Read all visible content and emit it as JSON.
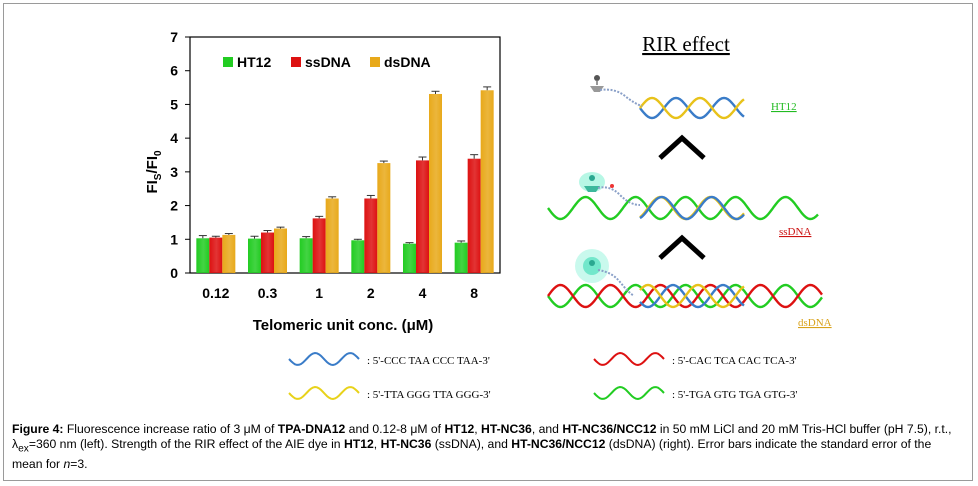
{
  "chart_data": {
    "type": "bar",
    "categories": [
      "0.12",
      "0.3",
      "1",
      "2",
      "4",
      "8"
    ],
    "series": [
      {
        "name": "HT12",
        "color": "#22cc22",
        "values": [
          1.03,
          1.02,
          1.03,
          0.97,
          0.87,
          0.9
        ],
        "errors": [
          0.08,
          0.07,
          0.05,
          0.03,
          0.03,
          0.05
        ]
      },
      {
        "name": "ssDNA",
        "color": "#dd1111",
        "values": [
          1.05,
          1.2,
          1.62,
          2.21,
          3.34,
          3.39
        ],
        "errors": [
          0.04,
          0.06,
          0.06,
          0.09,
          0.1,
          0.12
        ]
      },
      {
        "name": "dsDNA",
        "color": "#e8a91a",
        "values": [
          1.13,
          1.32,
          2.21,
          3.26,
          5.31,
          5.42
        ],
        "errors": [
          0.04,
          0.04,
          0.05,
          0.06,
          0.08,
          0.1
        ]
      }
    ],
    "xlabel": "Telomeric unit conc. (μM)",
    "ylabel_main": "FI",
    "ylabel_sub1": "S",
    "ylabel_mid": "/FI",
    "ylabel_sub2": "0",
    "ylim": [
      0,
      7
    ],
    "yticks": [
      "0",
      "1",
      "2",
      "3",
      "4",
      "5",
      "6",
      "7"
    ],
    "legend_position": "top-left",
    "grid": false
  },
  "diagram": {
    "title": "RIR effect",
    "labels": {
      "ht12": "HT12",
      "ssdna": "ssDNA",
      "dsdna": "dsDNA"
    },
    "label_colors": {
      "ht12": "#22bb22",
      "ssdna": "#cc1111",
      "dsdna": "#d9a21a"
    },
    "strand_legend": [
      {
        "color": "#3a7cc8",
        "sequence": ": 5'-CCC TAA CCC TAA-3'"
      },
      {
        "color": "#dd1111",
        "sequence": ": 5'-CAC TCA CAC TCA-3'"
      },
      {
        "color": "#e8d21a",
        "sequence": ": 5'-TTA GGG TTA GGG-3'"
      },
      {
        "color": "#22cc22",
        "sequence": ": 5'-TGA GTG TGA GTG-3'"
      }
    ]
  },
  "caption": {
    "label": "Figure 4:",
    "segments": [
      {
        "t": " Fluorescence increase ratio of 3 μM of ",
        "b": false
      },
      {
        "t": "TPA-DNA12",
        "b": true
      },
      {
        "t": " and 0.12-8 μM of ",
        "b": false
      },
      {
        "t": "HT12",
        "b": true
      },
      {
        "t": ", ",
        "b": false
      },
      {
        "t": "HT-NC36",
        "b": true
      },
      {
        "t": ", and ",
        "b": false
      },
      {
        "t": "HT-NC36/NCC12",
        "b": true
      },
      {
        "t": " in 50 mM LiCl and 20 mM Tris-HCl buffer (pH 7.5), r.t., λ",
        "b": false
      },
      {
        "t": "ex",
        "sub": true
      },
      {
        "t": "=360 nm (left). Strength of the RIR effect of the AIE dye in ",
        "b": false
      },
      {
        "t": "HT12",
        "b": true
      },
      {
        "t": ", ",
        "b": false
      },
      {
        "t": "HT-NC36",
        "b": true
      },
      {
        "t": " (ssDNA), and ",
        "b": false
      },
      {
        "t": "HT-NC36/NCC12",
        "b": true
      },
      {
        "t": " (dsDNA) (right). Error bars indicate the standard error of the mean for ",
        "b": false
      },
      {
        "t": "n",
        "i": true
      },
      {
        "t": "=3.",
        "b": false
      }
    ]
  }
}
